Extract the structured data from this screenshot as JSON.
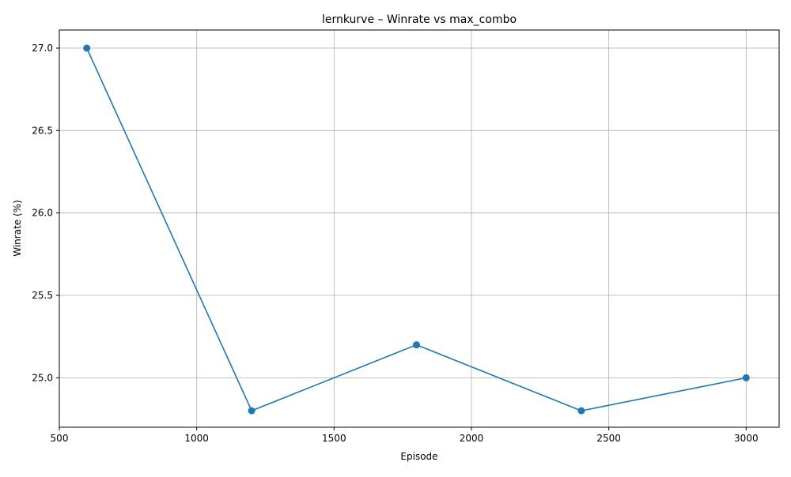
{
  "chart_data": {
    "type": "line",
    "title": "lernkurve – Winrate vs max_combo",
    "xlabel": "Episode",
    "ylabel": "Winrate (%)",
    "x": [
      600,
      1200,
      1800,
      2400,
      3000
    ],
    "series": [
      {
        "values": [
          27.0,
          24.8,
          25.2,
          24.8,
          25.0
        ],
        "color": "#1f77b4",
        "marker": "circle"
      }
    ],
    "xlim": [
      500,
      3120
    ],
    "ylim": [
      24.7,
      27.11
    ],
    "xticks": [
      500,
      1000,
      1500,
      2000,
      2500,
      3000
    ],
    "xtick_labels": [
      "500",
      "1000",
      "1500",
      "2000",
      "2500",
      "3000"
    ],
    "yticks": [
      25.0,
      25.5,
      26.0,
      26.5,
      27.0
    ],
    "ytick_labels": [
      "25.0",
      "25.5",
      "26.0",
      "26.5",
      "27.0"
    ],
    "grid": true
  }
}
